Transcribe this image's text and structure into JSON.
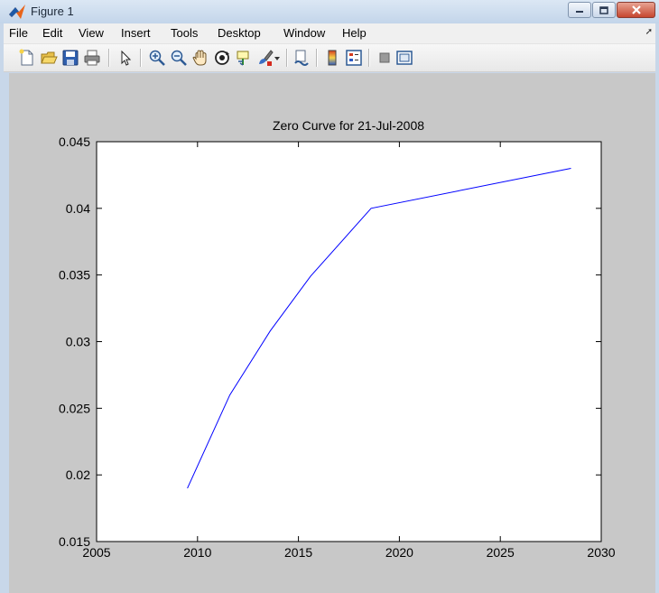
{
  "window": {
    "title": "Figure 1",
    "colors": {
      "frame": "#c8d7e9",
      "figure_bg": "#c8c8c8",
      "line": "#0000ff"
    }
  },
  "menu": {
    "items": [
      {
        "label": "File"
      },
      {
        "label": "Edit"
      },
      {
        "label": "View"
      },
      {
        "label": "Insert"
      },
      {
        "label": "Tools"
      },
      {
        "label": "Desktop"
      },
      {
        "label": "Window"
      },
      {
        "label": "Help"
      }
    ],
    "overflow_icon": "arrow-icon"
  },
  "toolbar": {
    "icons": [
      "new-figure-icon",
      "open-file-icon",
      "save-icon",
      "print-icon",
      "select-arrow-icon",
      "zoom-in-icon",
      "zoom-out-icon",
      "pan-hand-icon",
      "rotate-3d-icon",
      "data-cursor-icon",
      "brush-icon",
      "link-plot-icon",
      "colorbar-icon",
      "legend-icon",
      "hide-plot-tools-icon",
      "show-plot-tools-icon"
    ]
  },
  "chart_data": {
    "type": "line",
    "title": "Zero Curve for 21-Jul-2008",
    "xlabel": "",
    "ylabel": "",
    "xlim": [
      2005,
      2030
    ],
    "ylim": [
      0.015,
      0.045
    ],
    "x_ticks": [
      "2005",
      "2010",
      "2015",
      "2020",
      "2025",
      "2030"
    ],
    "y_ticks": [
      "0.015",
      "0.02",
      "0.025",
      "0.03",
      "0.035",
      "0.04",
      "0.045"
    ],
    "grid": false,
    "series": [
      {
        "color": "#0000ff",
        "x": [
          2009.5,
          2011.6,
          2013.6,
          2015.6,
          2018.6,
          2028.5
        ],
        "y": [
          0.019,
          0.026,
          0.0308,
          0.0349,
          0.04,
          0.043
        ]
      }
    ]
  }
}
